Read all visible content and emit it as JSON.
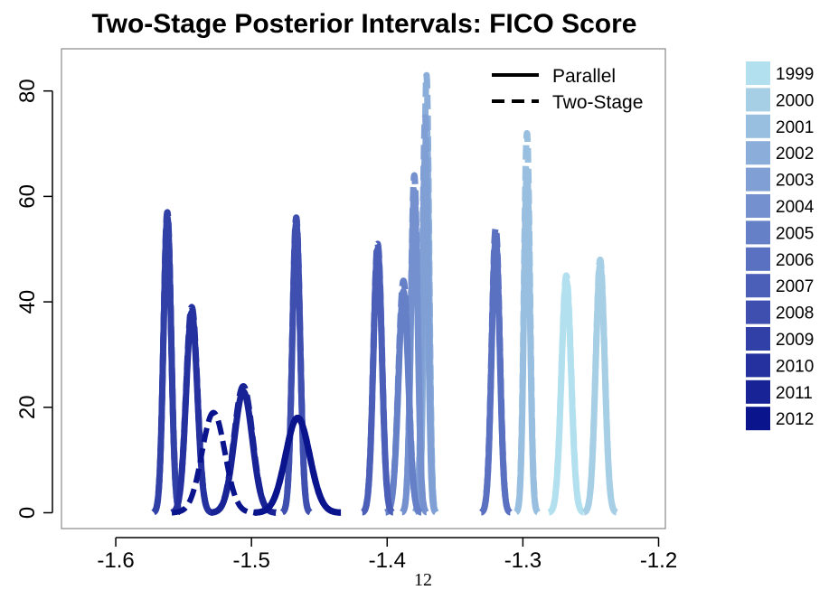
{
  "page_number": "12",
  "chart_data": {
    "type": "line",
    "title": "Two-Stage Posterior Intervals: FICO Score",
    "xlabel": "",
    "ylabel": "",
    "xlim": [
      -1.64,
      -1.195
    ],
    "ylim": [
      -3,
      88
    ],
    "xticks": [
      -1.6,
      -1.5,
      -1.4,
      -1.3,
      -1.2
    ],
    "xtick_labels": [
      "-1.6",
      "-1.5",
      "-1.4",
      "-1.3",
      "-1.2"
    ],
    "yticks": [
      0,
      20,
      40,
      60,
      80
    ],
    "ytick_labels": [
      "0",
      "20",
      "40",
      "60",
      "80"
    ],
    "grid": false,
    "line_styles": [
      {
        "name": "Parallel",
        "style": "solid"
      },
      {
        "name": "Two-Stage",
        "style": "dashed"
      }
    ],
    "line_legend_position": "top-right",
    "color_legend_position": "right",
    "series": [
      {
        "name": "1999",
        "color": "#b3e0ee",
        "mode": -1.268,
        "peak": 45,
        "parallel_peak": 44
      },
      {
        "name": "2000",
        "color": "#a6cfe6",
        "mode": -1.243,
        "peak": 48,
        "parallel_peak": 47
      },
      {
        "name": "2001",
        "color": "#98bfe0",
        "mode": -1.297,
        "peak": 72,
        "parallel_peak": 65
      },
      {
        "name": "2002",
        "color": "#8badda",
        "mode": -1.371,
        "peak": 83,
        "parallel_peak": 75
      },
      {
        "name": "2003",
        "color": "#7f9fd5",
        "mode": -1.372,
        "peak": 75,
        "parallel_peak": 68
      },
      {
        "name": "2004",
        "color": "#7490cf",
        "mode": -1.38,
        "peak": 64,
        "parallel_peak": 61
      },
      {
        "name": "2005",
        "color": "#6680c8",
        "mode": -1.388,
        "peak": 44,
        "parallel_peak": 42
      },
      {
        "name": "2006",
        "color": "#5a70c0",
        "mode": -1.32,
        "peak": 54,
        "parallel_peak": 52
      },
      {
        "name": "2007",
        "color": "#4c5fb8",
        "mode": -1.407,
        "peak": 51,
        "parallel_peak": 50
      },
      {
        "name": "2008",
        "color": "#3f4fb0",
        "mode": -1.467,
        "peak": 56,
        "parallel_peak": 55
      },
      {
        "name": "2009",
        "color": "#3140a7",
        "mode": -1.562,
        "peak": 57,
        "parallel_peak": 56
      },
      {
        "name": "2010",
        "color": "#25319e",
        "mode": -1.544,
        "peak": 39,
        "parallel_peak": 38
      },
      {
        "name": "2011",
        "color": "#182395",
        "mode": -1.506,
        "peak": 24,
        "parallel_peak": 23
      },
      {
        "name": "2012",
        "color": "#0a148c",
        "mode": -1.466,
        "peak": 18,
        "parallel_peak": 18,
        "alt_mode": -1.528,
        "alt_peak": 19
      }
    ]
  }
}
